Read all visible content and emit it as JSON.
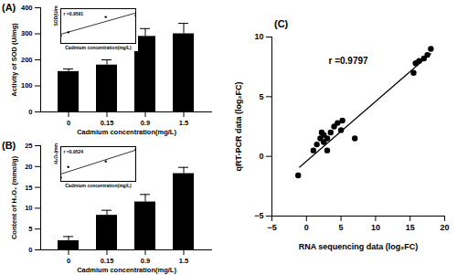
{
  "chart_data": [
    {
      "type": "bar",
      "title": "(A)",
      "categories": [
        "0",
        "0.15",
        "0.9",
        "1.5"
      ],
      "values": [
        155,
        180,
        290,
        300
      ],
      "errors": [
        10,
        20,
        30,
        40
      ],
      "color": "#000000",
      "x_label": "Cadmium concentration(mg/L)",
      "y_label": "Activity of SOD (U/mg)",
      "ylim": [
        0,
        400
      ],
      "yticks": [
        0,
        100,
        200,
        300,
        400
      ]
    },
    {
      "type": "scatter",
      "annotation": "r =0.9591",
      "x": [
        0,
        0.15,
        0.9,
        1.5
      ],
      "values": [
        155,
        180,
        290,
        300
      ],
      "fit": {
        "x": [
          0,
          1.5
        ],
        "y": [
          166,
          319
        ]
      },
      "color": "#000000",
      "x_label": "Cadmium concentration(mg/L)",
      "y_label": "SOD(U/mg)",
      "xlim": [
        0,
        1.5
      ],
      "ylim": [
        100,
        350
      ],
      "tick_labels": false
    },
    {
      "type": "bar",
      "title": "(B)",
      "categories": [
        "0",
        "0.15",
        "0.9",
        "1.5"
      ],
      "values": [
        2.2,
        8.3,
        11.5,
        18.3
      ],
      "errors": [
        1,
        1.2,
        1.8,
        1.5
      ],
      "color": "#000000",
      "x_label": "Cadmium concentration(mg/L)",
      "y_label": "Content of H₂O₂ (mmol/g)",
      "ylim": [
        0,
        25
      ],
      "yticks": [
        0,
        5,
        10,
        15,
        20,
        25
      ]
    },
    {
      "type": "scatter",
      "annotation": "r =0.9524",
      "x": [
        0,
        0.15,
        0.9,
        1.5
      ],
      "values": [
        2.2,
        8.3,
        11.5,
        18.3
      ],
      "fit": {
        "x": [
          0,
          1.5
        ],
        "y": [
          4.2,
          18.0
        ]
      },
      "color": "#000000",
      "x_label": "Cadmium concentration(mg/L)",
      "y_label": "H₂O₂(mmol/g)",
      "xlim": [
        0,
        1.5
      ],
      "ylim": [
        0,
        20
      ],
      "tick_labels": false
    },
    {
      "type": "scatter",
      "title": "(C)",
      "annotation": "r =0.9797",
      "x": [
        -1.2,
        1,
        1.5,
        2,
        2.2,
        2.5,
        2.5,
        3,
        3,
        3.5,
        4,
        4.5,
        5,
        5.2,
        7,
        15.5,
        15.8,
        16.3,
        17,
        17.5,
        18
      ],
      "values": [
        -1.6,
        0.5,
        1,
        1.5,
        2,
        1.8,
        1.2,
        1.5,
        0.5,
        2,
        2.5,
        2.8,
        2.2,
        3,
        1.5,
        7,
        7.8,
        8,
        8.2,
        8.5,
        9
      ],
      "fit": {
        "x": [
          -1,
          18
        ],
        "y": [
          -0.9,
          8.6
        ]
      },
      "color": "#000000",
      "x_label": "RNA sequencing data (log₂FC)",
      "y_label": "qRT-PCR data (log₂FC)",
      "xlim": [
        -5,
        20
      ],
      "xticks": [
        -5,
        0,
        5,
        10,
        15,
        20
      ],
      "ylim": [
        -5,
        10
      ],
      "yticks": [
        -5,
        0,
        5,
        10
      ]
    }
  ]
}
